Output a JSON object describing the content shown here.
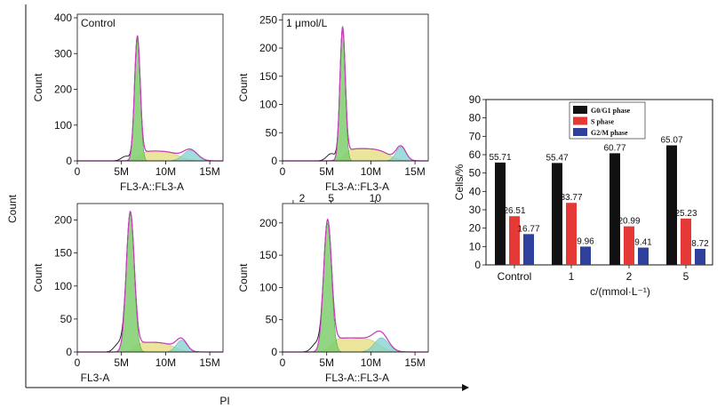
{
  "figure": {
    "outer_ylabel": "Count",
    "outer_xlabel": "PI"
  },
  "histograms": [
    {
      "id": "control",
      "label": "Control",
      "xlabel": "FL3-A::FL3-A",
      "ylabel": "Count",
      "yticks": [
        "0",
        "100",
        "200",
        "300",
        "400"
      ],
      "xticks": [
        "0",
        "5M",
        "10M",
        "15M"
      ],
      "top_ticks": [],
      "ymax": 410,
      "g1": {
        "mu": 6.8,
        "sigma": 0.32,
        "h": 340
      },
      "s": {
        "h": 28,
        "x0": 7.0,
        "x1": 11.5
      },
      "g2": {
        "mu": 12.8,
        "sigma": 0.8,
        "h": 30
      }
    },
    {
      "id": "1umol",
      "label": "1 μmol/L",
      "xlabel": "FL3-A::FL3-A",
      "ylabel": "Count",
      "yticks": [
        "0",
        "50",
        "100",
        "150",
        "200",
        "250"
      ],
      "xticks": [
        "0",
        "5M",
        "10M",
        "15M"
      ],
      "top_ticks": [],
      "ymax": 260,
      "g1": {
        "mu": 6.8,
        "sigma": 0.3,
        "h": 230
      },
      "s": {
        "h": 22,
        "x0": 7.0,
        "x1": 12.0
      },
      "g2": {
        "mu": 13.4,
        "sigma": 0.55,
        "h": 25
      }
    },
    {
      "id": "2mmol",
      "label": "",
      "xlabel": "FL3-A",
      "ylabel": "Count",
      "yticks": [
        "0",
        "50",
        "100",
        "150",
        "200"
      ],
      "xticks": [
        "0",
        "5M",
        "10M",
        "15M"
      ],
      "top_ticks": [],
      "ymax": 225,
      "g1": {
        "mu": 6.0,
        "sigma": 0.45,
        "h": 210
      },
      "s": {
        "h": 15,
        "x0": 6.5,
        "x1": 11.0
      },
      "g2": {
        "mu": 11.8,
        "sigma": 0.6,
        "h": 18
      }
    },
    {
      "id": "5mmol",
      "label": "",
      "xlabel": "FL3-A::FL3-A",
      "ylabel": "Count",
      "yticks": [
        "0",
        "50",
        "100",
        "150",
        "200"
      ],
      "xticks": [
        "0",
        "5M",
        "10M",
        "15M"
      ],
      "top_ticks": [
        "2",
        "5",
        "10"
      ],
      "ymax": 230,
      "g1": {
        "mu": 5.1,
        "sigma": 0.45,
        "h": 200
      },
      "s": {
        "h": 22,
        "x0": 5.5,
        "x1": 11.0
      },
      "g2": {
        "mu": 11.2,
        "sigma": 0.8,
        "h": 22
      }
    }
  ],
  "chart_data": {
    "type": "bar",
    "categories": [
      "Control",
      "1",
      "2",
      "5"
    ],
    "xlabel": "c/(mmol·L⁻¹)",
    "ylabel": "Cells/%",
    "ylim": [
      0,
      90
    ],
    "yticks": [
      0,
      10,
      20,
      30,
      40,
      50,
      60,
      70,
      80,
      90
    ],
    "legend_position": "top-right",
    "series": [
      {
        "name": "G0/G1 phase",
        "color": "#111111",
        "values": [
          55.71,
          55.47,
          60.77,
          65.07
        ]
      },
      {
        "name": "S phase",
        "color": "#e53935",
        "values": [
          26.51,
          33.77,
          20.99,
          25.23
        ]
      },
      {
        "name": "G2/M phase",
        "color": "#2f3f9e",
        "values": [
          16.77,
          9.96,
          9.41,
          8.72
        ]
      }
    ]
  }
}
